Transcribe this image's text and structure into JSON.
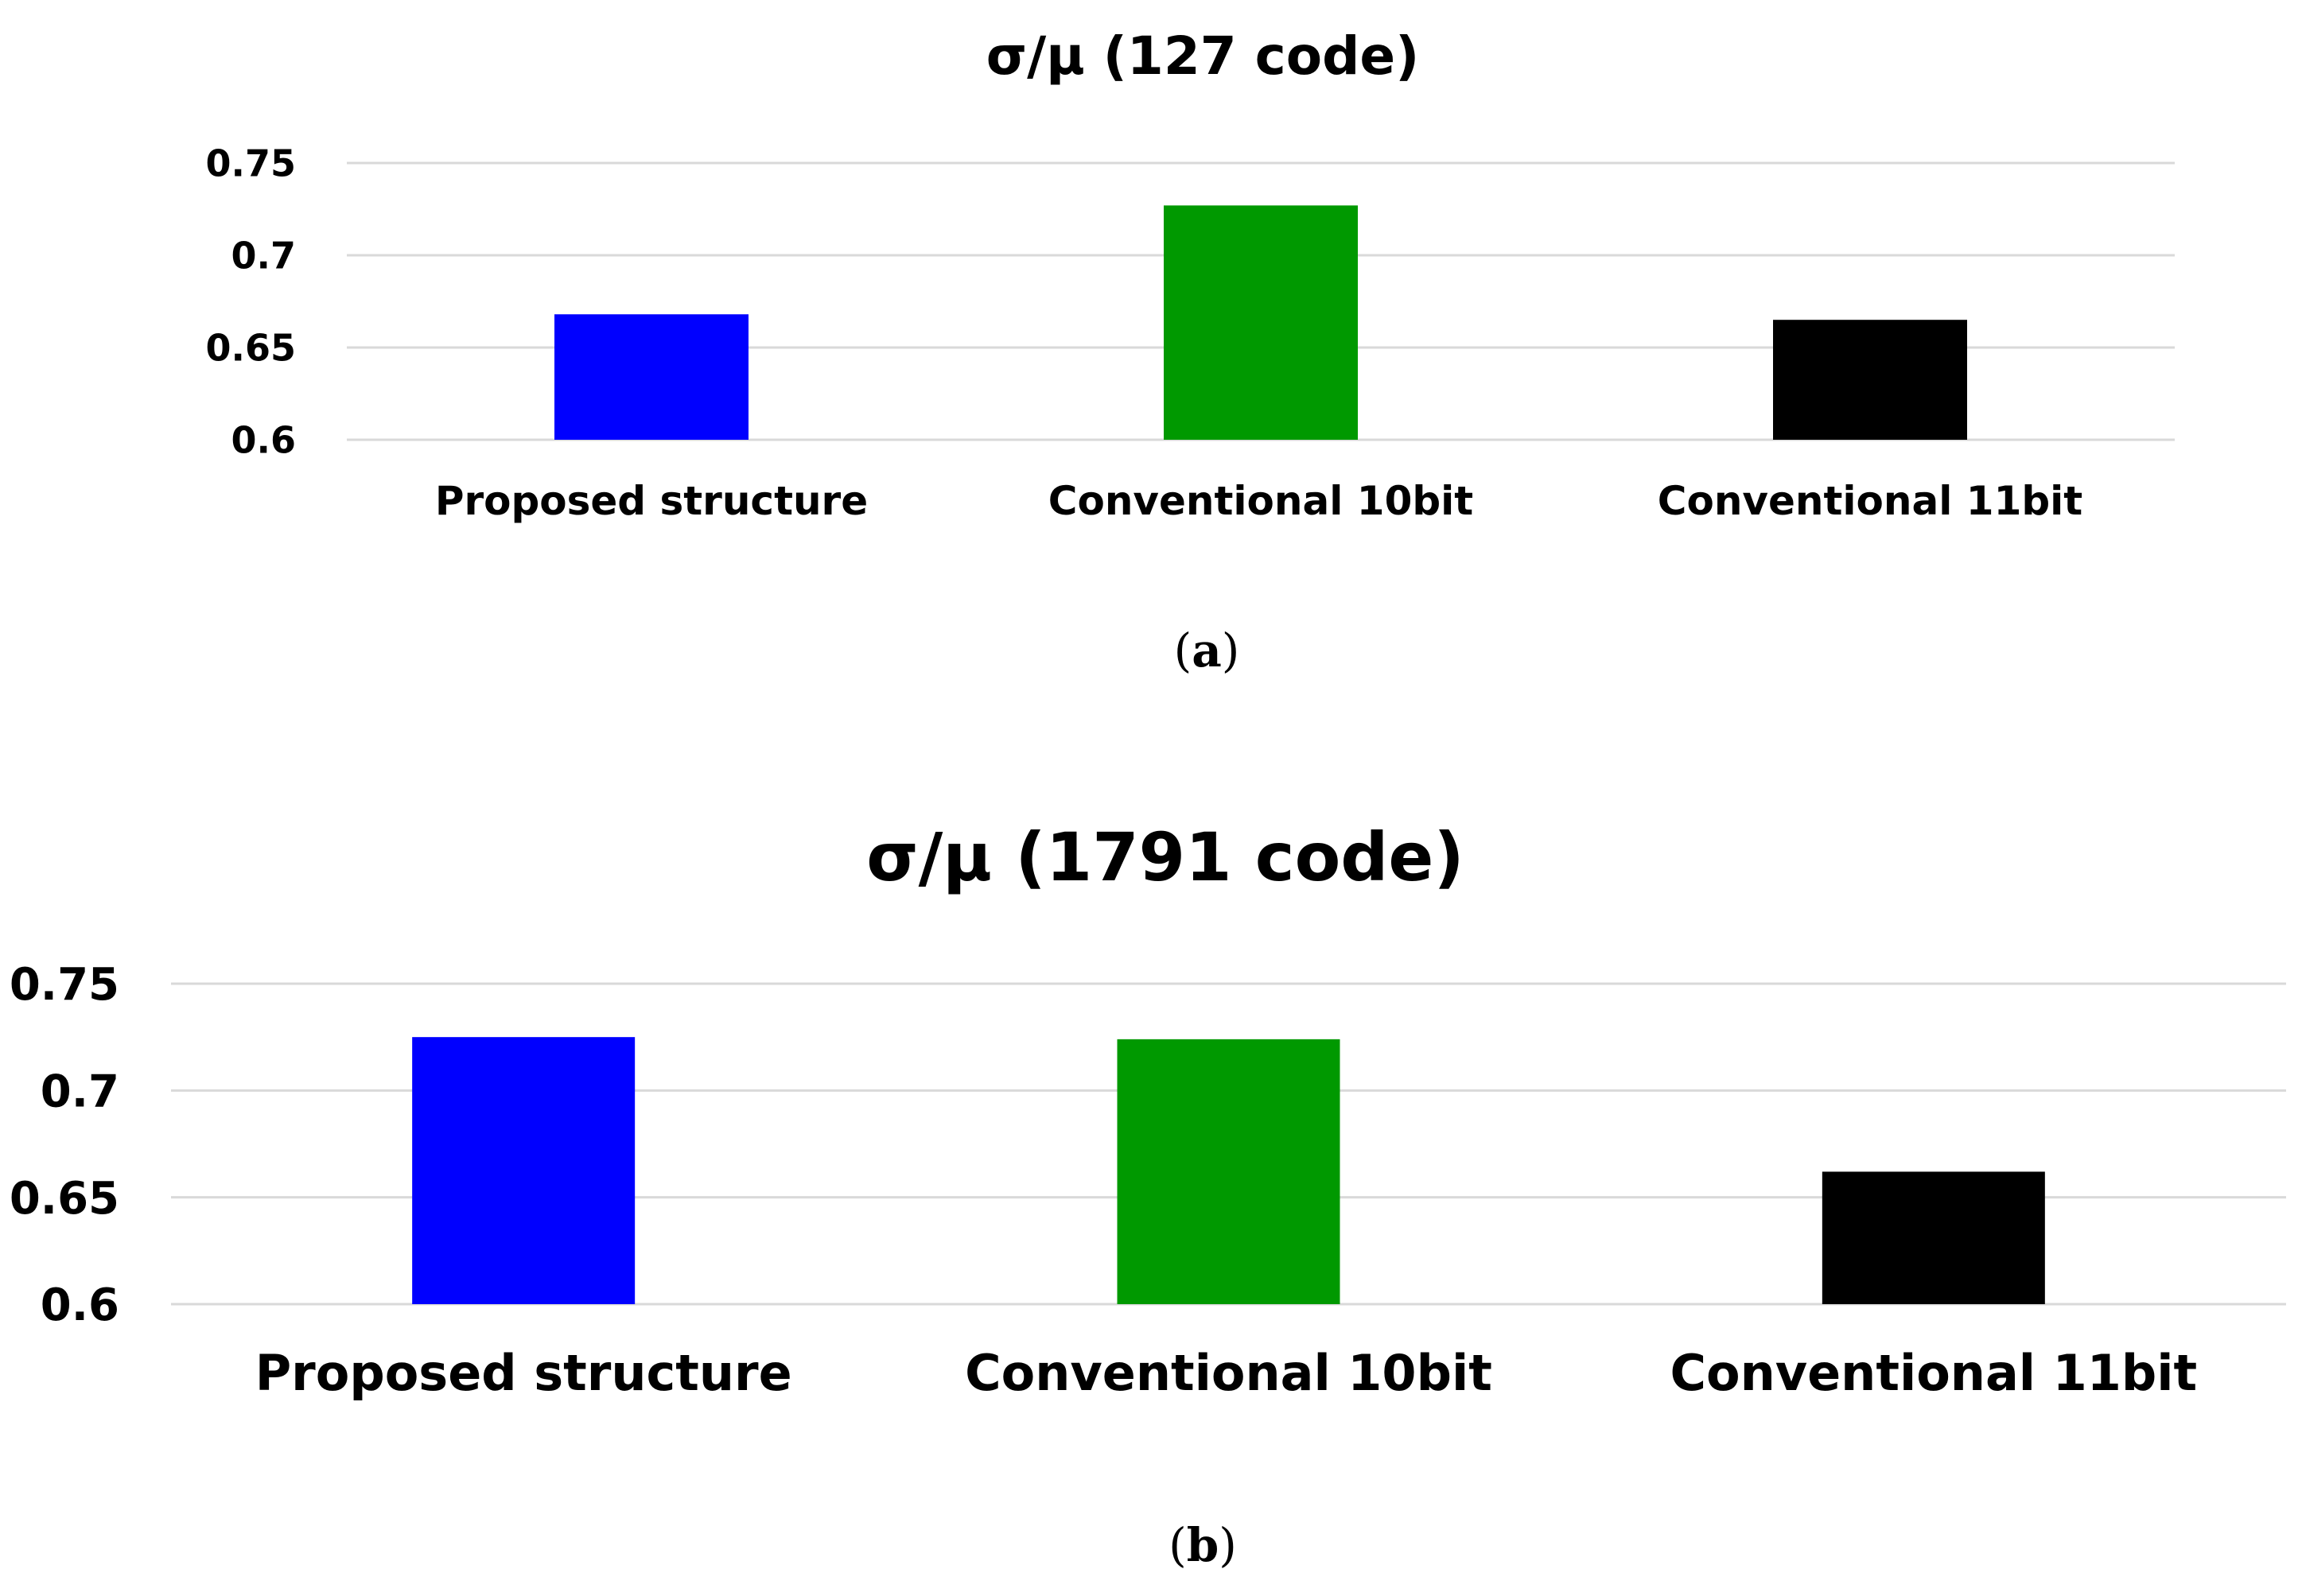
{
  "chart_data": [
    {
      "type": "bar",
      "title": "σ/μ (127 code)",
      "categories": [
        "Proposed structure",
        "Conventional 10bit",
        "Conventional 11bit"
      ],
      "values": [
        0.668,
        0.727,
        0.665
      ],
      "colors": [
        "#0000FF",
        "#009900",
        "#000000"
      ],
      "ylim": [
        0.6,
        0.75
      ],
      "yticks": [
        "0.6",
        "0.65",
        "0.7",
        "0.75"
      ],
      "grid": true,
      "legend": "none",
      "caption_letter": "a"
    },
    {
      "type": "bar",
      "title": "σ/μ (1791 code)",
      "categories": [
        "Proposed structure",
        "Conventional 10bit",
        "Conventional 11bit"
      ],
      "values": [
        0.725,
        0.724,
        0.662
      ],
      "colors": [
        "#0000FF",
        "#009900",
        "#000000"
      ],
      "ylim": [
        0.6,
        0.75
      ],
      "yticks": [
        "0.6",
        "0.65",
        "0.7",
        "0.75"
      ],
      "grid": true,
      "legend": "none",
      "caption_letter": "b"
    }
  ]
}
